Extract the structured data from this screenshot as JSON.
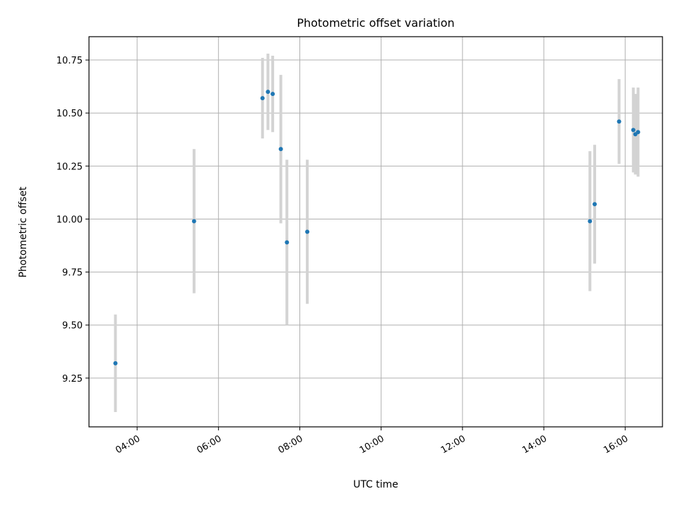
{
  "chart_data": {
    "type": "scatter",
    "title": "Photometric offset variation",
    "xlabel": "UTC time",
    "ylabel": "Photometric offset",
    "x_tick_labels": [
      "04:00",
      "06:00",
      "08:00",
      "10:00",
      "12:00",
      "14:00",
      "16:00"
    ],
    "y_tick_labels": [
      "9.25",
      "9.50",
      "9.75",
      "10.00",
      "10.25",
      "10.50",
      "10.75"
    ],
    "xlim": [
      "02:49",
      "16:55"
    ],
    "ylim": [
      9.02,
      10.86
    ],
    "grid": true,
    "series": [
      {
        "marker_color": "#1f77b4",
        "errorbar_color": "#d3d3d3",
        "points": [
          {
            "x": "03:28",
            "y": 9.32,
            "yerr": 0.23
          },
          {
            "x": "05:24",
            "y": 9.99,
            "yerr": 0.34
          },
          {
            "x": "07:05",
            "y": 10.57,
            "yerr": 0.19
          },
          {
            "x": "07:13",
            "y": 10.6,
            "yerr": 0.18
          },
          {
            "x": "07:20",
            "y": 10.59,
            "yerr": 0.18
          },
          {
            "x": "07:32",
            "y": 10.33,
            "yerr": 0.35
          },
          {
            "x": "07:41",
            "y": 9.89,
            "yerr": 0.39
          },
          {
            "x": "08:11",
            "y": 9.94,
            "yerr": 0.34
          },
          {
            "x": "15:08",
            "y": 9.99,
            "yerr": 0.33
          },
          {
            "x": "15:15",
            "y": 10.07,
            "yerr": 0.28
          },
          {
            "x": "15:51",
            "y": 10.46,
            "yerr": 0.2
          },
          {
            "x": "16:12",
            "y": 10.42,
            "yerr": 0.2
          },
          {
            "x": "16:15",
            "y": 10.4,
            "yerr": 0.19
          },
          {
            "x": "16:19",
            "y": 10.41,
            "yerr": 0.21
          }
        ]
      }
    ]
  }
}
